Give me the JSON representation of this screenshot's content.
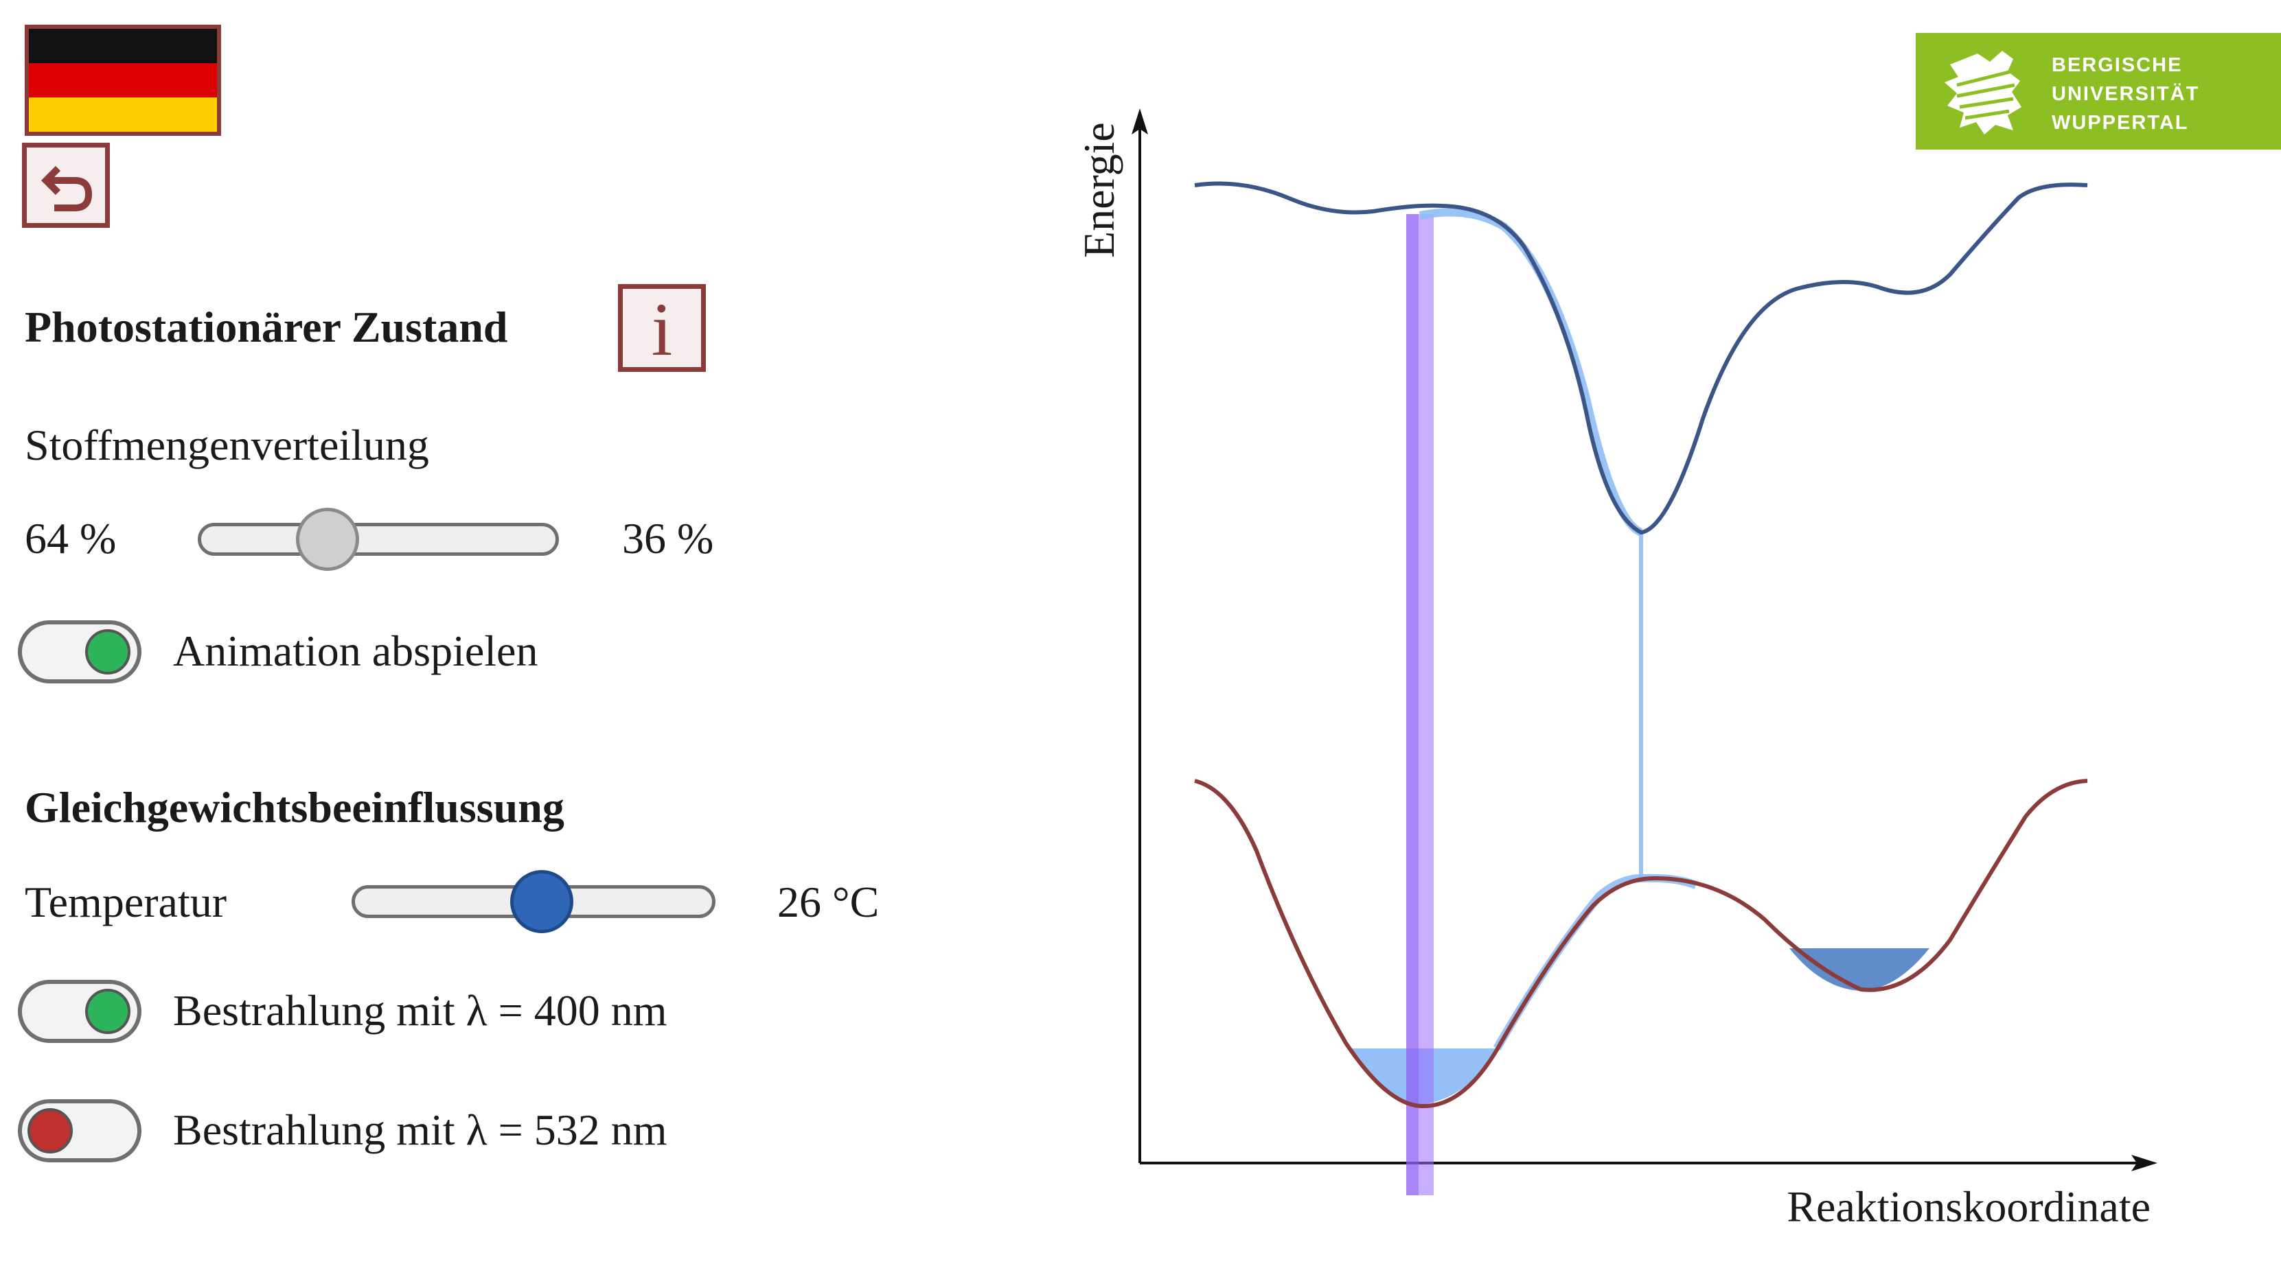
{
  "header": {
    "language_flag": "flag-germany-icon",
    "back_icon": "back-arrow-icon",
    "logo_lines": [
      "BERGISCHE",
      "UNIVERSITÄT",
      "WUPPERTAL"
    ]
  },
  "photostationary": {
    "title": "Photostationärer Zustand",
    "info_label": "i",
    "distribution_label": "Stoffmengenverteilung",
    "left_percent": "64 %",
    "right_percent": "36 %",
    "distribution_fraction": 0.36,
    "animation_label": "Animation abspielen",
    "animation_on": true
  },
  "equilibrium": {
    "title": "Gleichgewichtsbeeinflussung",
    "temperature_label": "Temperatur",
    "temperature_value": "26 °C",
    "irradiation_400_label": "Bestrahlung mit λ = 400 nm",
    "irradiation_400_on": true,
    "irradiation_532_label": "Bestrahlung mit λ = 532 nm",
    "irradiation_532_on": false
  },
  "diagram": {
    "y_axis_label": "Energie",
    "x_axis_label": "Reaktionskoordinate"
  },
  "colors": {
    "accent_border": "#8c3b3b",
    "toggle_on": "#2db45a",
    "toggle_off": "#c0302f",
    "temperature_thumb": "#2f66b8",
    "distribution_thumb": "#cfcfcf",
    "excited_curve": "#3b5587",
    "ground_curve": "#8c3b3b",
    "logo_green": "#8dbe23"
  }
}
